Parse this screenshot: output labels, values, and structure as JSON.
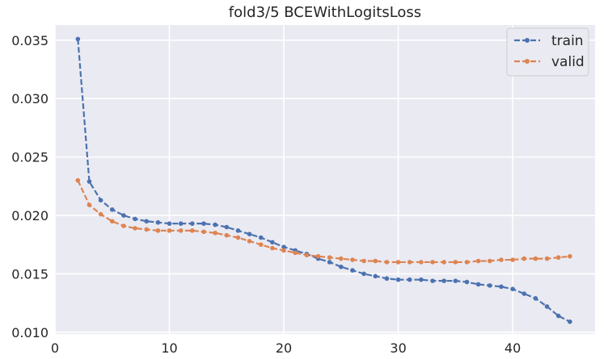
{
  "chart_data": {
    "type": "line",
    "title": "fold3/5 BCEWithLogitsLoss",
    "xlabel": "",
    "ylabel": "",
    "xlim": [
      0,
      47.2
    ],
    "ylim": [
      0.00985,
      0.0363
    ],
    "x_ticks": [
      0,
      10,
      20,
      30,
      40
    ],
    "y_ticks": [
      0.01,
      0.015,
      0.02,
      0.025,
      0.03,
      0.035
    ],
    "x_tick_labels": [
      "0",
      "10",
      "20",
      "30",
      "40"
    ],
    "y_tick_labels": [
      "0.010",
      "0.015",
      "0.020",
      "0.025",
      "0.030",
      "0.035"
    ],
    "grid": true,
    "legend_position": "top-right",
    "x": [
      2,
      3,
      4,
      5,
      6,
      7,
      8,
      9,
      10,
      11,
      12,
      13,
      14,
      15,
      16,
      17,
      18,
      19,
      20,
      21,
      22,
      23,
      24,
      25,
      26,
      27,
      28,
      29,
      30,
      31,
      32,
      33,
      34,
      35,
      36,
      37,
      38,
      39,
      40,
      41,
      42,
      43,
      44,
      45
    ],
    "series": [
      {
        "name": "train",
        "color": "#4c72b0",
        "values": [
          0.0351,
          0.0229,
          0.0213,
          0.0205,
          0.02,
          0.0197,
          0.0195,
          0.0194,
          0.0193,
          0.0193,
          0.0193,
          0.0193,
          0.0192,
          0.019,
          0.0187,
          0.0184,
          0.0181,
          0.0177,
          0.0173,
          0.017,
          0.0167,
          0.0163,
          0.016,
          0.0156,
          0.0153,
          0.015,
          0.0148,
          0.0146,
          0.0145,
          0.0145,
          0.0145,
          0.0144,
          0.0144,
          0.0144,
          0.0143,
          0.0141,
          0.014,
          0.0139,
          0.0137,
          0.0133,
          0.0129,
          0.0122,
          0.0114,
          0.0109
        ]
      },
      {
        "name": "valid",
        "color": "#dd8452",
        "values": [
          0.023,
          0.0209,
          0.0201,
          0.0195,
          0.0191,
          0.0189,
          0.0188,
          0.0187,
          0.0187,
          0.0187,
          0.0187,
          0.0186,
          0.0185,
          0.0183,
          0.0181,
          0.0178,
          0.0175,
          0.0172,
          0.017,
          0.0168,
          0.0166,
          0.0165,
          0.0164,
          0.0163,
          0.0162,
          0.0161,
          0.0161,
          0.016,
          0.016,
          0.016,
          0.016,
          0.016,
          0.016,
          0.016,
          0.016,
          0.0161,
          0.0161,
          0.0162,
          0.0162,
          0.0163,
          0.0163,
          0.0163,
          0.0164,
          0.0165
        ]
      }
    ]
  }
}
